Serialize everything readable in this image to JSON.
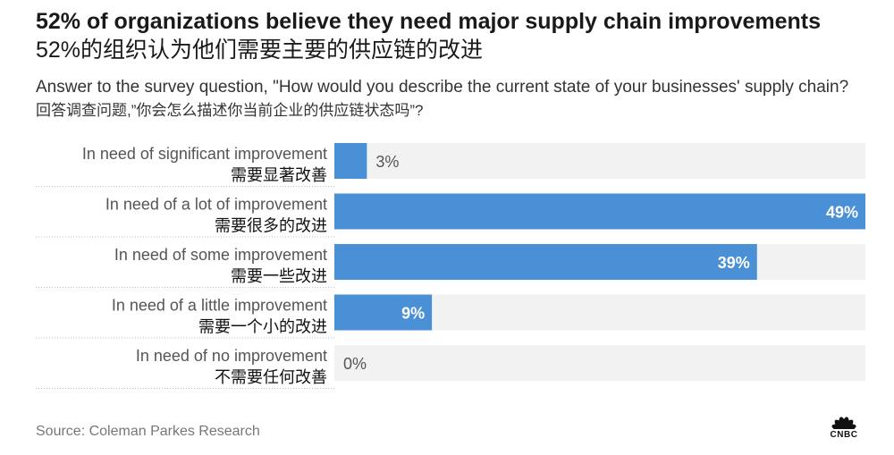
{
  "header": {
    "title_en": "52% of organizations believe they need major supply chain improvements",
    "title_cn": "52%的组织认为他们需要主要的供应链的改进",
    "subtitle_en": "Answer to the survey question, \"How would you describe the current state of your businesses' supply chain?",
    "subtitle_cn": "回答调查问题,”你会怎么描述你当前企业的供应链状态吗”?"
  },
  "colors": {
    "bar": "#4a90d6",
    "track": "#f2f2f2",
    "divider": "#bfbfbf",
    "label_en": "#555555",
    "label_cn": "#111111",
    "value_outside": "#555555",
    "value_inside": "#ffffff"
  },
  "chart_data": {
    "type": "bar",
    "orientation": "horizontal",
    "xlim": [
      0,
      49
    ],
    "grid": false,
    "categories": [
      "In need of significant improvement",
      "In need of a lot of improvement",
      "In need of some improvement",
      "In need of a little improvement",
      "In need of no improvement"
    ],
    "categories_cn": [
      "需要显著改善",
      "需要很多的改进",
      "需要一些改进",
      "需要一个小的改进",
      "不需要任何改善"
    ],
    "values": [
      3,
      49,
      39,
      9,
      0
    ],
    "value_labels": [
      "3%",
      "49%",
      "39%",
      "9%",
      "0%"
    ]
  },
  "footer": {
    "source": "Source: Coleman Parkes Research",
    "logo_text": "CNBC"
  },
  "icons": {
    "logo": "cnbc-peacock-icon"
  }
}
